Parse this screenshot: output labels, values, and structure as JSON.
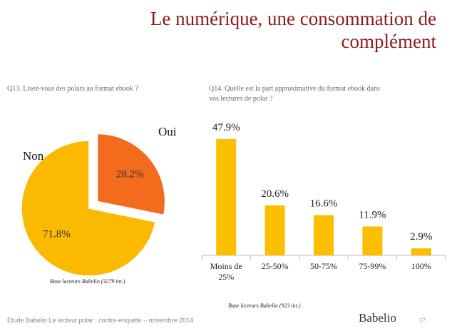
{
  "slide": {
    "title": "Le numérique, une consommation de complément",
    "footer": "Etude Babelio Le lecteur polar : contre-enquête – novembre 2014",
    "page": "17",
    "logo": "Babelio"
  },
  "chart_data": [
    {
      "type": "pie",
      "title": "Q13. Lisez-vous des polars au format ebook ?",
      "categories": [
        "Oui",
        "Non"
      ],
      "values": [
        28.2,
        71.8
      ],
      "value_labels": [
        "28.2%",
        "71.8%"
      ],
      "colors": [
        "#f36b1c",
        "#fbb900"
      ],
      "note": "Base lecteurs Babelio (3279 int.)"
    },
    {
      "type": "bar",
      "title": "Q14. Quelle est la part approximative du format ebook dans vos lectures de polar ?",
      "categories": [
        "Moins de 25%",
        "25-50%",
        "50-75%",
        "75-99%",
        "100%"
      ],
      "values": [
        47.9,
        20.6,
        16.6,
        11.9,
        2.9
      ],
      "value_labels": [
        "47.9%",
        "20.6%",
        "16.6%",
        "11.9%",
        "2.9%"
      ],
      "color": "#fbbf00",
      "note": "Base lecteurs Babelio (923 int.)"
    }
  ]
}
